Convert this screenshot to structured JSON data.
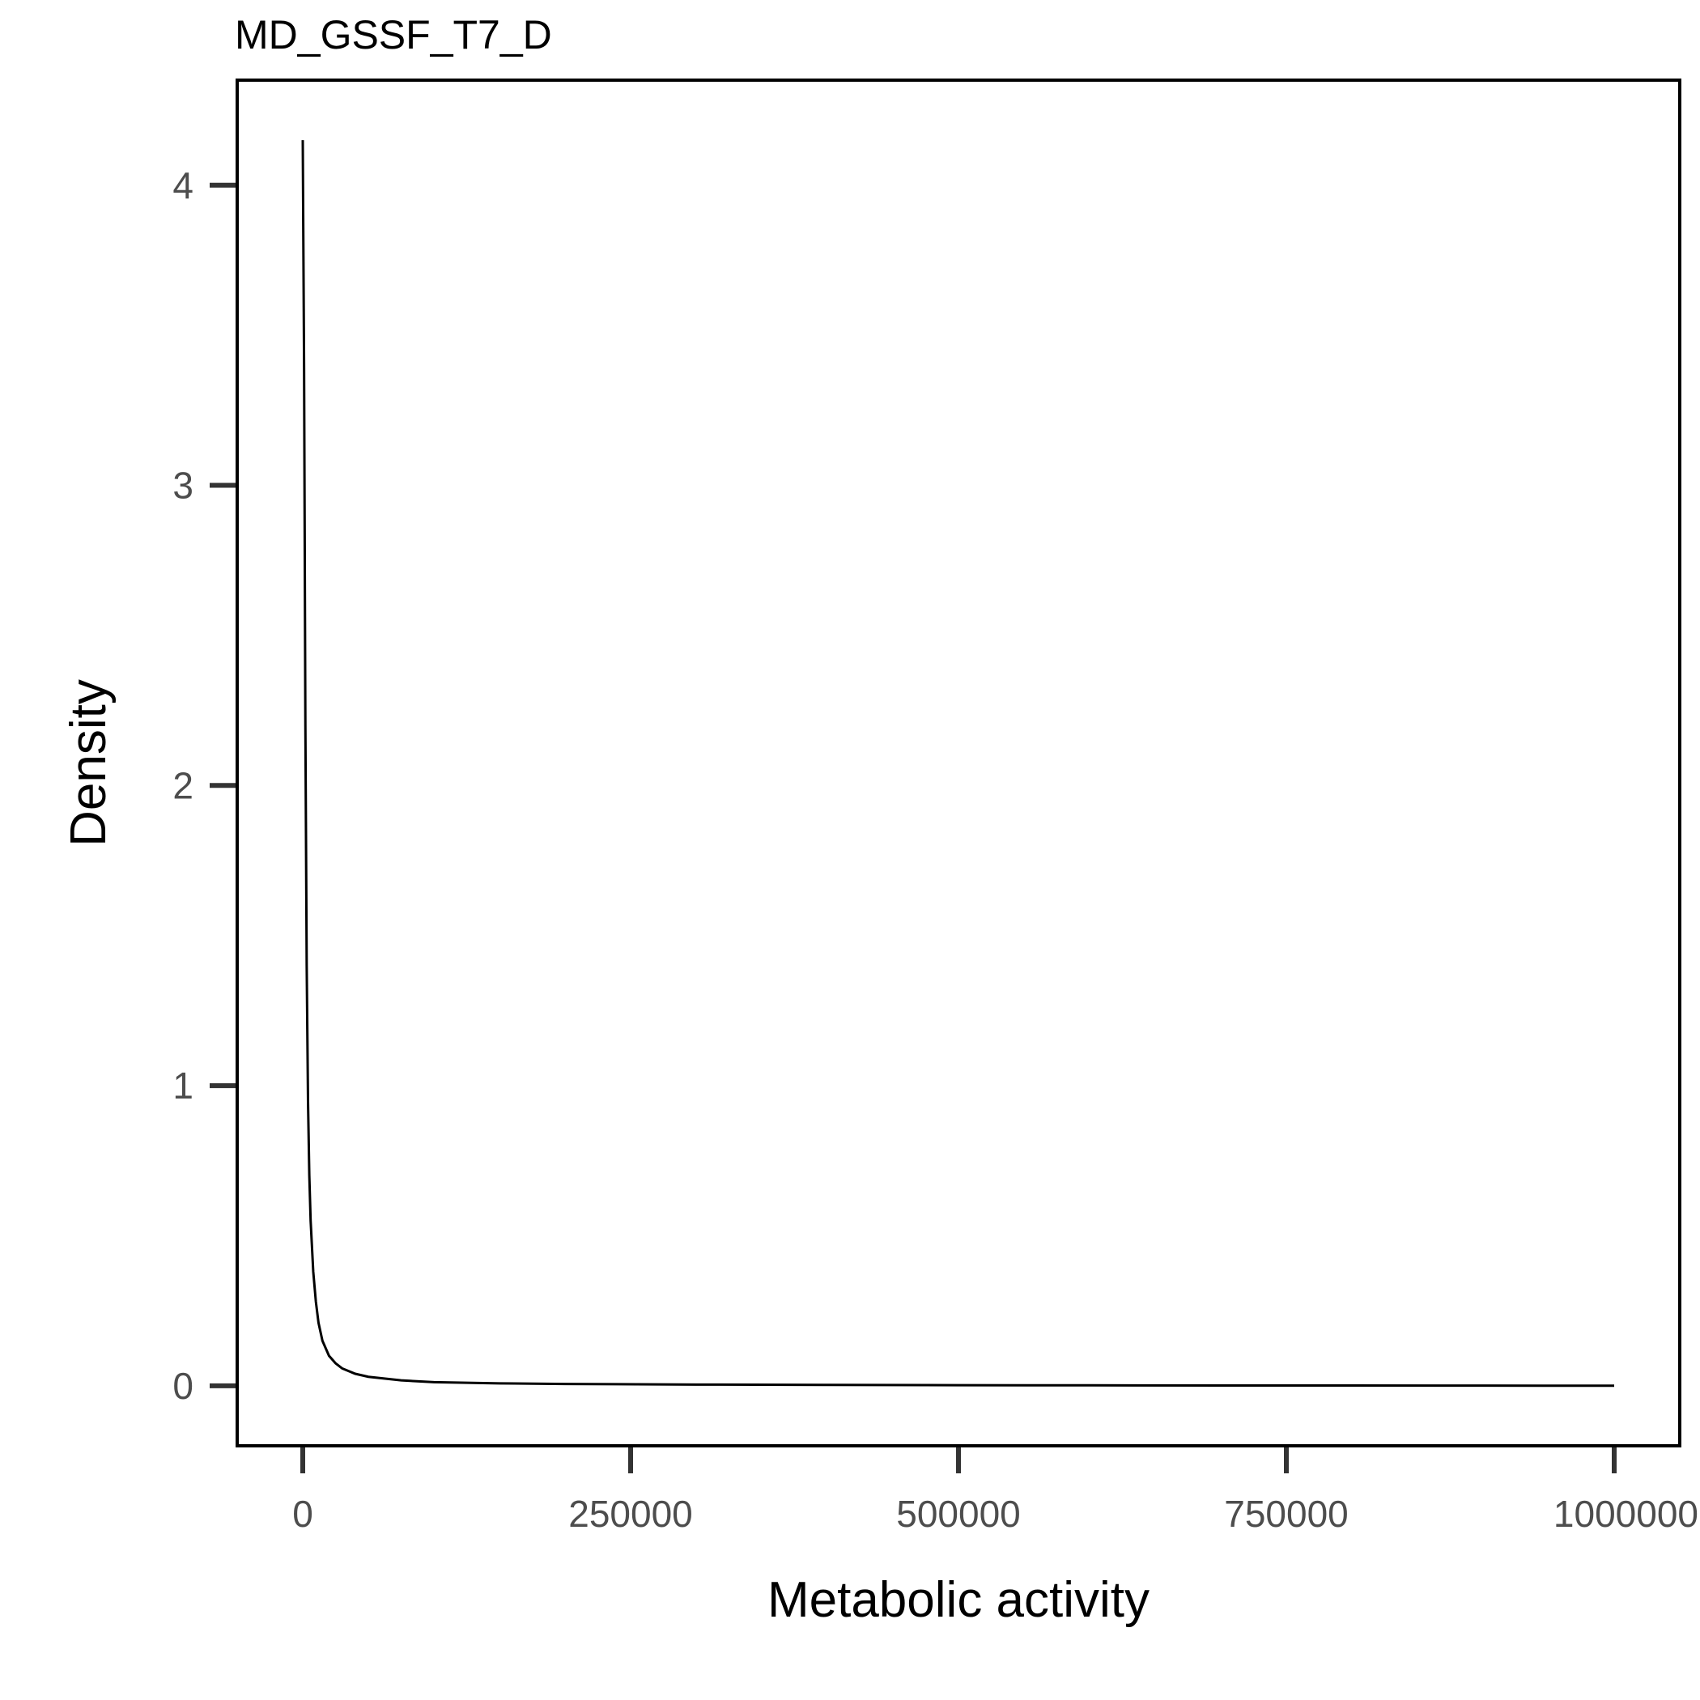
{
  "chart_data": {
    "type": "line",
    "title": "MD_GSSF_T7_D",
    "xlabel": "Metabolic activity",
    "ylabel": "Density",
    "xlim": [
      -50000,
      1050000
    ],
    "ylim": [
      -0.2,
      4.35
    ],
    "xticks": [
      0,
      250000,
      500000,
      750000,
      1000000
    ],
    "xtick_labels": [
      "0",
      "250000",
      "500000",
      "750000",
      "1000000"
    ],
    "yticks": [
      0,
      1,
      2,
      3,
      4
    ],
    "ytick_labels": [
      "0",
      "1",
      "2",
      "3",
      "4"
    ],
    "grid": false,
    "legend": "none",
    "line_color": "#000000",
    "series": [
      {
        "x": [
          0,
          1000,
          2000,
          3000,
          4000,
          5000,
          6000,
          8000,
          10000,
          12000,
          15000,
          20000,
          25000,
          30000,
          40000,
          50000,
          75000,
          100000,
          150000,
          200000,
          300000,
          400000,
          500000,
          600000,
          700000,
          800000,
          900000,
          1000000
        ],
        "y": [
          4.15,
          3.4,
          2.2,
          1.4,
          0.95,
          0.7,
          0.55,
          0.38,
          0.28,
          0.21,
          0.15,
          0.1,
          0.075,
          0.058,
          0.04,
          0.03,
          0.018,
          0.012,
          0.008,
          0.006,
          0.004,
          0.003,
          0.002,
          0.0015,
          0.001,
          0.0008,
          0.0005,
          0.0003
        ]
      }
    ]
  }
}
